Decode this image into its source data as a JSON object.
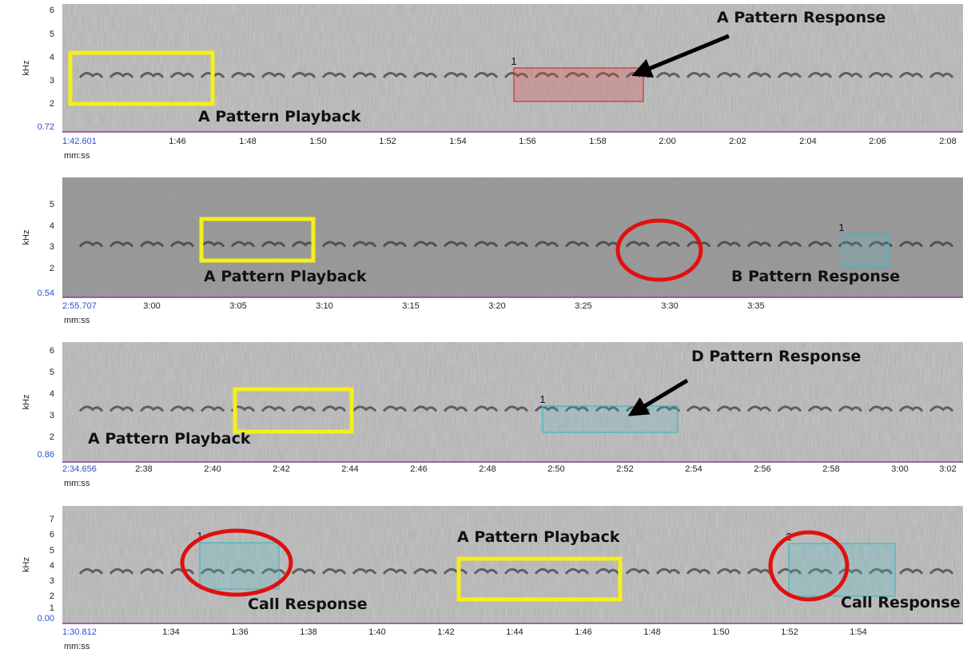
{
  "panels": [
    {
      "y_axis_label": "kHz",
      "y_tick_labels": [
        "6",
        "5",
        "4",
        "3",
        "2",
        "0.72"
      ],
      "x_tick_labels": [
        "1:42.601",
        "1:46",
        "1:48",
        "1:50",
        "1:52",
        "1:54",
        "1:56",
        "1:58",
        "2:00",
        "2:02",
        "2:04",
        "2:06",
        "2:08"
      ],
      "x_axis_label": "mm:ss",
      "annotations": [
        "A Pattern Playback",
        "A Pattern Response"
      ],
      "selection_labels": [
        "1"
      ]
    },
    {
      "y_axis_label": "kHz",
      "y_tick_labels": [
        "5",
        "4",
        "3",
        "2",
        "0.54"
      ],
      "x_tick_labels": [
        "2:55.707",
        "3:00",
        "3:05",
        "3:10",
        "3:15",
        "3:20",
        "3:25",
        "3:30",
        "3:35"
      ],
      "x_axis_label": "mm:ss",
      "annotations": [
        "A Pattern Playback",
        "B Pattern Response"
      ],
      "selection_labels": [
        "1"
      ]
    },
    {
      "y_axis_label": "kHz",
      "y_tick_labels": [
        "6",
        "5",
        "4",
        "3",
        "2",
        "0.86"
      ],
      "x_tick_labels": [
        "2:34.656",
        "2:38",
        "2:40",
        "2:42",
        "2:44",
        "2:46",
        "2:48",
        "2:50",
        "2:52",
        "2:54",
        "2:56",
        "2:58",
        "3:00",
        "3:02"
      ],
      "x_axis_label": "mm:ss",
      "annotations": [
        "A Pattern Playback",
        "D Pattern Response"
      ],
      "selection_labels": [
        "1"
      ]
    },
    {
      "y_axis_label": "kHz",
      "y_tick_labels": [
        "7",
        "6",
        "5",
        "4",
        "3",
        "2",
        "1",
        "0.00"
      ],
      "x_tick_labels": [
        "1:30.812",
        "1:34",
        "1:36",
        "1:38",
        "1:40",
        "1:42",
        "1:44",
        "1:46",
        "1:48",
        "1:50",
        "1:52",
        "1:54"
      ],
      "x_axis_label": "mm:ss",
      "annotations": [
        "Call Response",
        "A Pattern Playback",
        "Call Response"
      ],
      "selection_labels": [
        "1",
        "2"
      ]
    }
  ]
}
